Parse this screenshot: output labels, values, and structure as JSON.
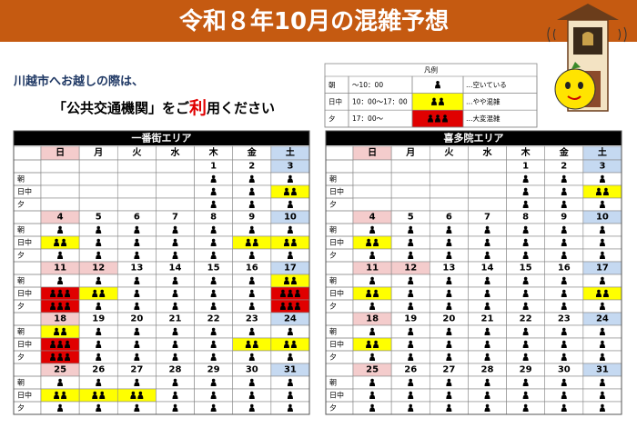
{
  "header": {
    "title": "令和８年10月の混雑予想"
  },
  "intro": {
    "line1": "川越市へお越しの際は、",
    "line2": [
      "「公共交通機関」をご",
      "利",
      "用ください"
    ]
  },
  "legend": {
    "title": "凡例",
    "rows": [
      {
        "slot": "朝",
        "time": "～10：00",
        "label": "…空いている"
      },
      {
        "slot": "日中",
        "time": "10：00～17：00",
        "label": "…やや混雑"
      },
      {
        "slot": "夕",
        "time": "17：00～",
        "label": "…大変混雑"
      }
    ]
  },
  "holidays": [
    12
  ],
  "areas": [
    {
      "name": "一番街エリア",
      "weekdays": [
        "日",
        "月",
        "火",
        "水",
        "木",
        "金",
        "土"
      ],
      "slots": [
        "朝",
        "日中",
        "夕"
      ],
      "weeks": [
        {
          "dates": [
            null,
            null,
            null,
            null,
            1,
            2,
            3
          ],
          "crowd": [
            [
              null,
              null,
              null,
              null,
              1,
              1,
              1
            ],
            [
              null,
              null,
              null,
              null,
              1,
              1,
              2
            ],
            [
              null,
              null,
              null,
              null,
              1,
              1,
              1
            ]
          ]
        },
        {
          "dates": [
            4,
            5,
            6,
            7,
            8,
            9,
            10
          ],
          "crowd": [
            [
              1,
              1,
              1,
              1,
              1,
              1,
              1
            ],
            [
              2,
              1,
              1,
              1,
              1,
              2,
              2
            ],
            [
              1,
              1,
              1,
              1,
              1,
              1,
              1
            ]
          ]
        },
        {
          "dates": [
            11,
            12,
            13,
            14,
            15,
            16,
            17
          ],
          "crowd": [
            [
              1,
              1,
              1,
              1,
              1,
              1,
              2
            ],
            [
              3,
              2,
              1,
              1,
              1,
              1,
              3
            ],
            [
              3,
              1,
              1,
              1,
              1,
              1,
              3
            ]
          ]
        },
        {
          "dates": [
            18,
            19,
            20,
            21,
            22,
            23,
            24
          ],
          "crowd": [
            [
              2,
              1,
              1,
              1,
              1,
              1,
              1
            ],
            [
              3,
              1,
              1,
              1,
              1,
              2,
              2
            ],
            [
              3,
              1,
              1,
              1,
              1,
              1,
              1
            ]
          ]
        },
        {
          "dates": [
            25,
            26,
            27,
            28,
            29,
            30,
            31
          ],
          "crowd": [
            [
              1,
              1,
              1,
              1,
              1,
              1,
              1
            ],
            [
              2,
              2,
              2,
              1,
              1,
              1,
              1
            ],
            [
              1,
              1,
              1,
              1,
              1,
              1,
              1
            ]
          ]
        }
      ]
    },
    {
      "name": "喜多院エリア",
      "weekdays": [
        "日",
        "月",
        "火",
        "水",
        "木",
        "金",
        "土"
      ],
      "slots": [
        "朝",
        "日中",
        "夕"
      ],
      "weeks": [
        {
          "dates": [
            null,
            null,
            null,
            null,
            1,
            2,
            3
          ],
          "crowd": [
            [
              null,
              null,
              null,
              null,
              1,
              1,
              1
            ],
            [
              null,
              null,
              null,
              null,
              1,
              1,
              2
            ],
            [
              null,
              null,
              null,
              null,
              1,
              1,
              1
            ]
          ]
        },
        {
          "dates": [
            4,
            5,
            6,
            7,
            8,
            9,
            10
          ],
          "crowd": [
            [
              1,
              1,
              1,
              1,
              1,
              1,
              1
            ],
            [
              2,
              1,
              1,
              1,
              1,
              1,
              1
            ],
            [
              1,
              1,
              1,
              1,
              1,
              1,
              1
            ]
          ]
        },
        {
          "dates": [
            11,
            12,
            13,
            14,
            15,
            16,
            17
          ],
          "crowd": [
            [
              1,
              1,
              1,
              1,
              1,
              1,
              1
            ],
            [
              2,
              1,
              1,
              1,
              1,
              1,
              2
            ],
            [
              1,
              1,
              1,
              1,
              1,
              1,
              1
            ]
          ]
        },
        {
          "dates": [
            18,
            19,
            20,
            21,
            22,
            23,
            24
          ],
          "crowd": [
            [
              1,
              1,
              1,
              1,
              1,
              1,
              1
            ],
            [
              2,
              1,
              1,
              1,
              1,
              1,
              1
            ],
            [
              1,
              1,
              1,
              1,
              1,
              1,
              1
            ]
          ]
        },
        {
          "dates": [
            25,
            26,
            27,
            28,
            29,
            30,
            31
          ],
          "crowd": [
            [
              1,
              1,
              1,
              1,
              1,
              1,
              1
            ],
            [
              1,
              1,
              1,
              1,
              1,
              1,
              1
            ],
            [
              1,
              1,
              1,
              1,
              1,
              1,
              1
            ]
          ]
        }
      ]
    }
  ]
}
